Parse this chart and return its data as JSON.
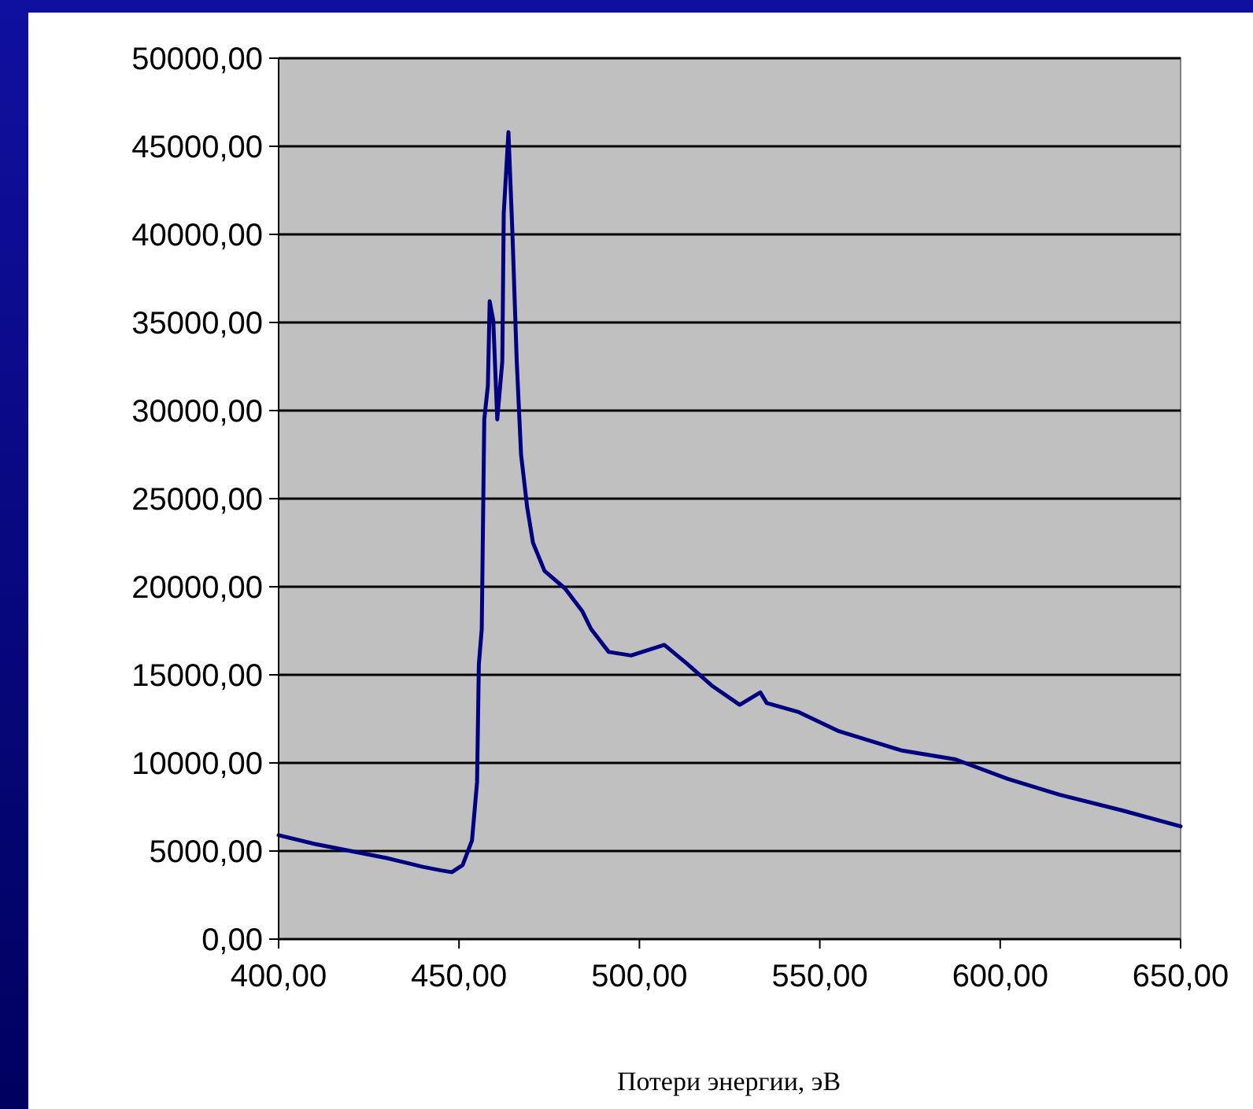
{
  "chart_data": {
    "type": "line",
    "xlabel": "Потери энергии, эВ",
    "xlim": [
      400,
      650
    ],
    "ylim": [
      0,
      50000
    ],
    "xticks": [
      {
        "value": 400,
        "label": "400,00"
      },
      {
        "value": 450,
        "label": "450,00"
      },
      {
        "value": 500,
        "label": "500,00"
      },
      {
        "value": 550,
        "label": "550,00"
      },
      {
        "value": 600,
        "label": "600,00"
      },
      {
        "value": 650,
        "label": "650,00"
      }
    ],
    "yticks": [
      {
        "value": 0,
        "label": "0,00"
      },
      {
        "value": 5000,
        "label": "5000,00"
      },
      {
        "value": 10000,
        "label": "10000,00"
      },
      {
        "value": 15000,
        "label": "15000,00"
      },
      {
        "value": 20000,
        "label": "20000,00"
      },
      {
        "value": 25000,
        "label": "25000,00"
      },
      {
        "value": 30000,
        "label": "30000,00"
      },
      {
        "value": 35000,
        "label": "35000,00"
      },
      {
        "value": 40000,
        "label": "40000,00"
      },
      {
        "value": 45000,
        "label": "45000,00"
      },
      {
        "value": 50000,
        "label": "50000,00"
      }
    ],
    "grid": "y",
    "marker": "none",
    "line_style": "solid",
    "series": [
      {
        "color": "#000080",
        "x": [
          400,
          410,
          420,
          430,
          440,
          445,
          448,
          451,
          453.6,
          455,
          455.5,
          456.3,
          457,
          458,
          458.5,
          459.5,
          460.6,
          462,
          462.4,
          463.7,
          464.8,
          466,
          467.2,
          468.9,
          470.5,
          473.7,
          479.4,
          484.2,
          486.6,
          491.5,
          497.7,
          506.9,
          513.4,
          520,
          527.8,
          533.5,
          535.3,
          544,
          555.3,
          572.8,
          587.6,
          602,
          616.4,
          633.9,
          650
        ],
        "values": [
          5900,
          5400,
          5000,
          4600,
          4100,
          3900,
          3800,
          4200,
          5600,
          8900,
          15600,
          17600,
          29500,
          31400,
          36200,
          35100,
          29500,
          32800,
          41200,
          45800,
          40100,
          32800,
          27500,
          24500,
          22500,
          20900,
          19900,
          18600,
          17600,
          16300,
          16100,
          16700,
          15600,
          14400,
          13300,
          14000,
          13400,
          12900,
          11800,
          10700,
          10200,
          9100,
          8200,
          7300,
          6400
        ]
      }
    ]
  }
}
